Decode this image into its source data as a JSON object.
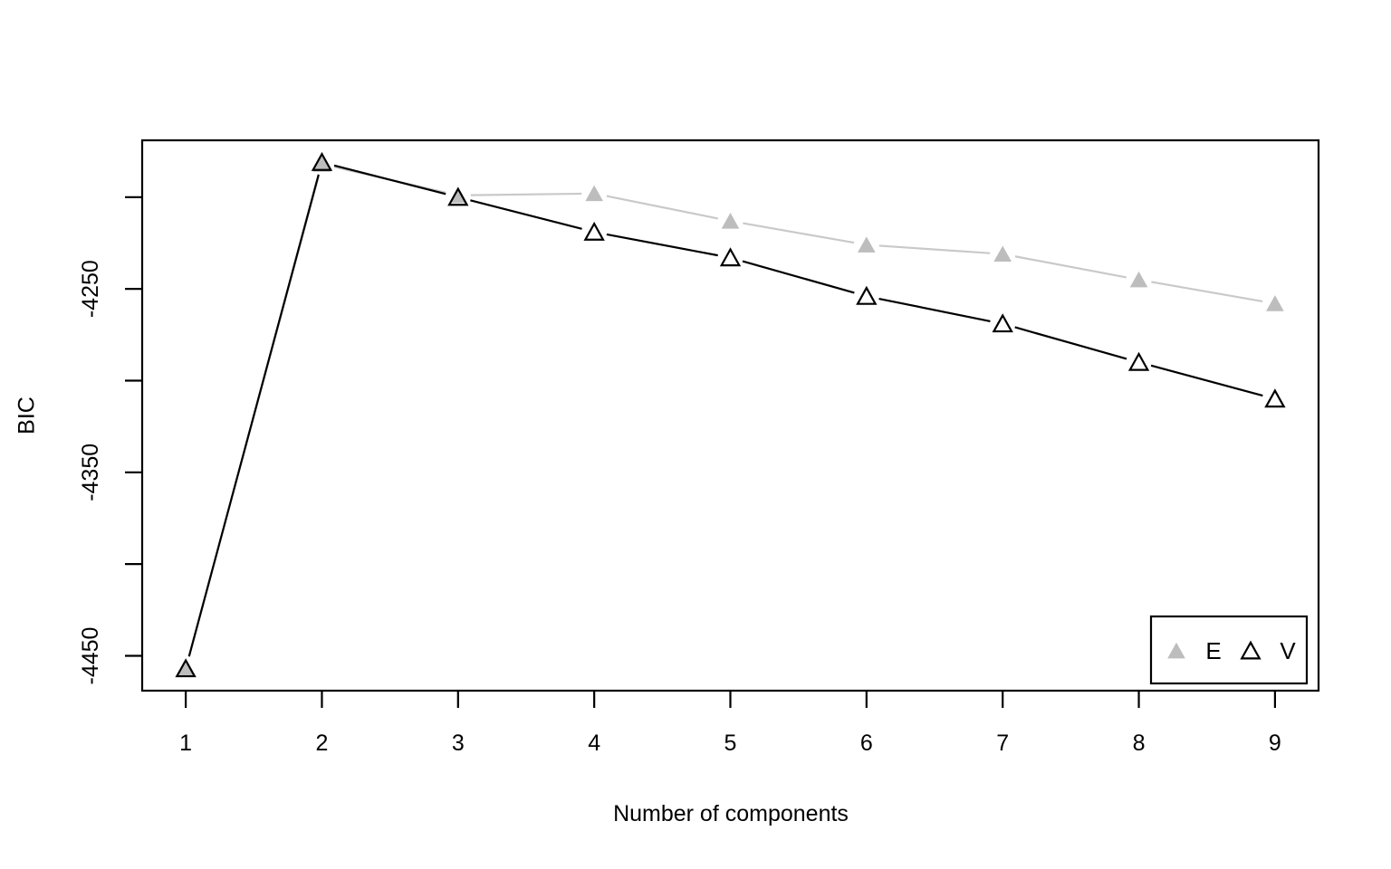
{
  "figure": {
    "background": "#ffffff",
    "frame_color": "#000000"
  },
  "chart_data": {
    "type": "line",
    "title": "",
    "xlabel": "Number of components",
    "ylabel": "BIC",
    "x": [
      1,
      2,
      3,
      4,
      5,
      6,
      7,
      8,
      9
    ],
    "series": [
      {
        "name": "E",
        "marker": "filled-triangle",
        "line_color": "#c9c9c9",
        "marker_fill": "#bdbdbd",
        "marker_stroke": "none",
        "values": [
          -4457,
          -4182,
          -4199,
          -4198,
          -4213,
          -4226,
          -4231,
          -4245,
          -4258
        ]
      },
      {
        "name": "V",
        "marker": "open-triangle",
        "line_color": "#000000",
        "marker_fill": "none",
        "marker_stroke": "#000000",
        "values": [
          -4457,
          -4181,
          -4200,
          -4219,
          -4233,
          -4254,
          -4269,
          -4290,
          -4310
        ]
      }
    ],
    "xlim": [
      0.68,
      9.32
    ],
    "ylim": [
      -4469,
      -4169
    ],
    "xticks": [
      {
        "value": 1,
        "label": "1"
      },
      {
        "value": 2,
        "label": "2"
      },
      {
        "value": 3,
        "label": "3"
      },
      {
        "value": 4,
        "label": "4"
      },
      {
        "value": 5,
        "label": "5"
      },
      {
        "value": 6,
        "label": "6"
      },
      {
        "value": 7,
        "label": "7"
      },
      {
        "value": 8,
        "label": "8"
      },
      {
        "value": 9,
        "label": "9"
      }
    ],
    "yticks": [
      {
        "value": -4450,
        "label": "-4450"
      },
      {
        "value": -4400,
        "label": ""
      },
      {
        "value": -4350,
        "label": "-4350"
      },
      {
        "value": -4300,
        "label": ""
      },
      {
        "value": -4250,
        "label": "-4250"
      },
      {
        "value": -4200,
        "label": ""
      }
    ],
    "grid": false,
    "legend": {
      "position": "bottom-right",
      "entries": [
        {
          "label": "E",
          "marker": "filled-triangle"
        },
        {
          "label": "V",
          "marker": "open-triangle"
        }
      ]
    }
  }
}
